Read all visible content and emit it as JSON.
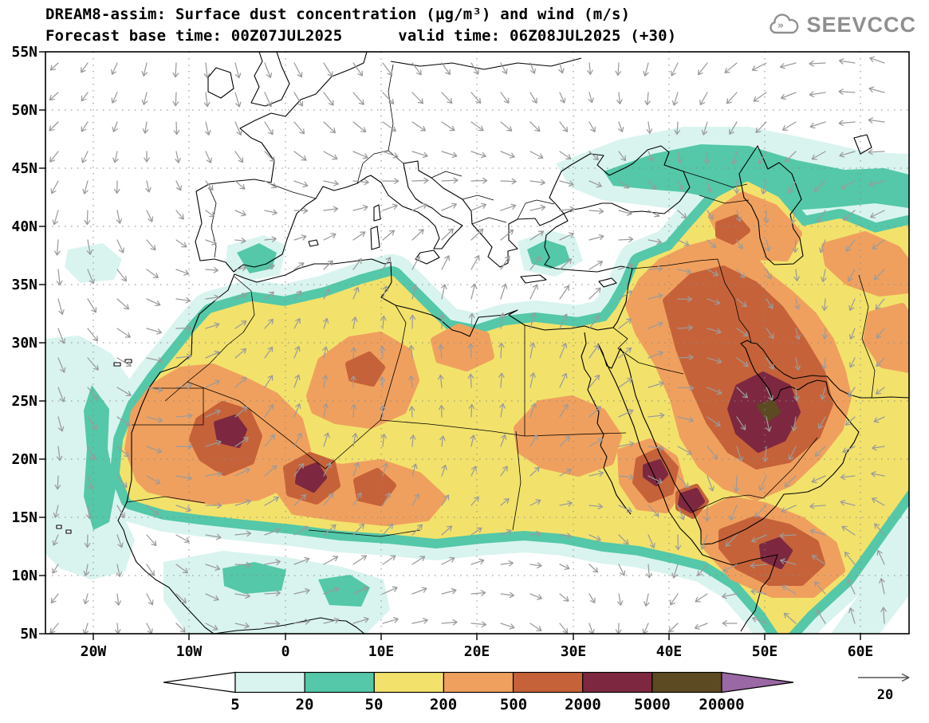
{
  "header": {
    "title": "DREAM8-assim: Surface dust concentration (µg/m³) and wind (m/s)",
    "forecast_line": "Forecast base time: 00Z07JUL2025      valid time: 06Z08JUL2025 (+30)",
    "logo_text": "SEEVCCC"
  },
  "map": {
    "y_ticks": [
      "55N",
      "50N",
      "45N",
      "40N",
      "35N",
      "30N",
      "25N",
      "20N",
      "15N",
      "10N",
      "5N"
    ],
    "x_ticks": [
      "20W",
      "10W",
      "0",
      "10E",
      "20E",
      "30E",
      "40E",
      "50E",
      "60E"
    ],
    "colors": {
      "sea": "#ffffff",
      "coastline": "#000000",
      "borders": "#000000",
      "graticule": "#888888",
      "wind": "#9b9b9b",
      "dust_5": "#d9f4ef",
      "dust_20": "#54c8a8",
      "dust_50": "#f2e26b",
      "dust_200": "#f0a05e",
      "dust_500": "#c66239",
      "dust_2000": "#7d2840",
      "dust_5000": "#5c4a22",
      "dust_20000": "#9a68a4"
    }
  },
  "legend": {
    "labels": [
      "5",
      "20",
      "50",
      "200",
      "500",
      "2000",
      "5000",
      "20000"
    ],
    "segment_colors": [
      "#d9f4ef",
      "#54c8a8",
      "#f2e26b",
      "#f0a05e",
      "#c66239",
      "#7d2840",
      "#5c4a22"
    ],
    "below_min_color": "#ffffff",
    "above_max_color": "#9a68a4"
  },
  "wind_reference": {
    "label": "20"
  },
  "chart_data": {
    "type": "heatmap",
    "title": "DREAM8-assim: Surface dust concentration (µg/m³) and wind (m/s)",
    "variable": "Surface dust concentration",
    "units": "µg/m³",
    "wind_units": "m/s",
    "forecast_base_time": "00Z07JUL2025",
    "valid_time": "06Z08JUL2025",
    "forecast_hour": "+30",
    "contour_levels": [
      5,
      20,
      50,
      200,
      500,
      2000,
      5000,
      20000
    ],
    "lat_ticks": [
      "55N",
      "50N",
      "45N",
      "40N",
      "35N",
      "30N",
      "25N",
      "20N",
      "15N",
      "10N",
      "5N"
    ],
    "lon_ticks": [
      "20W",
      "10W",
      "0",
      "10E",
      "20E",
      "30E",
      "40E",
      "50E",
      "60E"
    ],
    "wind_reference_ms": 20,
    "legend_position": "bottom"
  }
}
